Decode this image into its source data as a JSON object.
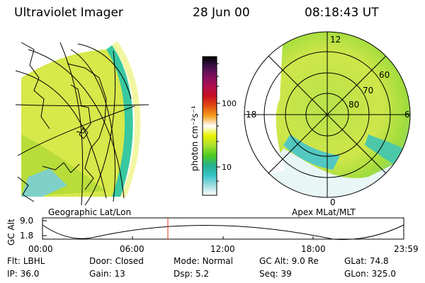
{
  "header": {
    "title": "Ultraviolet Imager",
    "date": "28 Jun 00",
    "time": "08:18:43 UT"
  },
  "colorbar": {
    "unit_label": "photon cm⁻²s⁻¹",
    "ticks": [
      "100",
      "10"
    ],
    "stops": [
      "#ffffff",
      "#9fdde0",
      "#35c4c8",
      "#28b090",
      "#4ccc22",
      "#a8e030",
      "#e8f000",
      "#ffffff",
      "#f7a020",
      "#e25010",
      "#c81020",
      "#b01050",
      "#801060",
      "#40104a",
      "#000000"
    ]
  },
  "left_panel": {
    "caption": "Geographic Lat/Lon"
  },
  "right_panel": {
    "caption": "Apex MLat/MLT",
    "mlt_labels": {
      "top": "12",
      "left": "18",
      "right": "6",
      "bottom": "0"
    },
    "lat_labels": [
      "60",
      "70",
      "80"
    ]
  },
  "altitude_plot": {
    "ylabel": "GC Alt",
    "y_ticks": [
      "9.0",
      "1.8"
    ],
    "x_ticks": [
      "00:00",
      "06:00",
      "12:00",
      "18:00",
      "23:59"
    ],
    "marker_time": "08:18:43"
  },
  "info": {
    "row1": [
      {
        "key": "Flt:",
        "value": "LBHL"
      },
      {
        "key": "Door:",
        "value": "Closed"
      },
      {
        "key": "Mode:",
        "value": "Normal"
      },
      {
        "key": "GC Alt:",
        "value": "9.0 Re"
      },
      {
        "key": "GLat:",
        "value": "74.8"
      }
    ],
    "row2": [
      {
        "key": "IP:",
        "value": "36.0"
      },
      {
        "key": "Gain:",
        "value": "13"
      },
      {
        "key": "Dsp:",
        "value": "5.2"
      },
      {
        "key": "Seq:",
        "value": "39"
      },
      {
        "key": "GLon:",
        "value": "325.0"
      }
    ]
  }
}
